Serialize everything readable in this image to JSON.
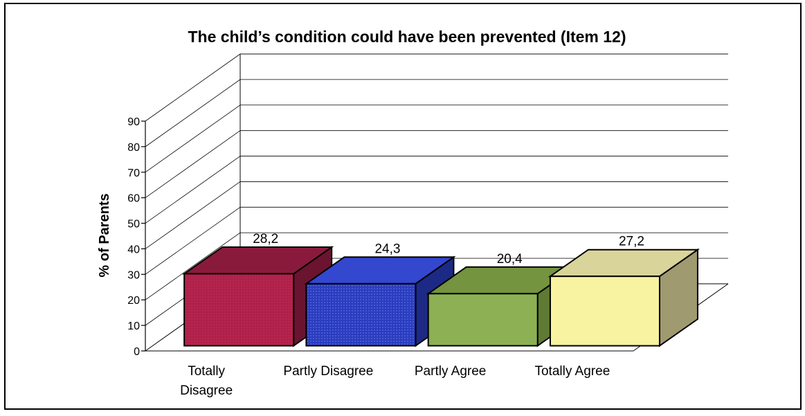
{
  "chart_data": {
    "type": "bar",
    "title": "The child’s condition could have been prevented (Item 12)",
    "ylabel": "% of Parents",
    "xlabel": "",
    "categories": [
      "Totally Disagree",
      "Partly Disagree",
      "Partly Agree",
      "Totally Agree"
    ],
    "category_lines": [
      [
        "Totally",
        "Disagree"
      ],
      [
        "Partly Disagree"
      ],
      [
        "Partly Agree"
      ],
      [
        "Totally Agree"
      ]
    ],
    "values": [
      28.2,
      24.3,
      20.4,
      27.2
    ],
    "value_labels": [
      "28,2",
      "24,3",
      "20,4",
      "27,2"
    ],
    "yticks": [
      "0",
      "10",
      "20",
      "30",
      "40",
      "50",
      "60",
      "70",
      "80",
      "90"
    ],
    "ylim": [
      0,
      90
    ],
    "grid": true,
    "legend": "none",
    "style": "3d",
    "colors": [
      {
        "front": "#b0204a",
        "top": "#8a1a3c",
        "side": "#6a1430"
      },
      {
        "front": "#2a3dbf",
        "top": "#3347cf",
        "side": "#1c2a86"
      },
      {
        "front": "#8db054",
        "top": "#74943f",
        "side": "#5f7a33"
      },
      {
        "front": "#f8f3a0",
        "top": "#d9d49a",
        "side": "#9f9a70"
      }
    ]
  }
}
